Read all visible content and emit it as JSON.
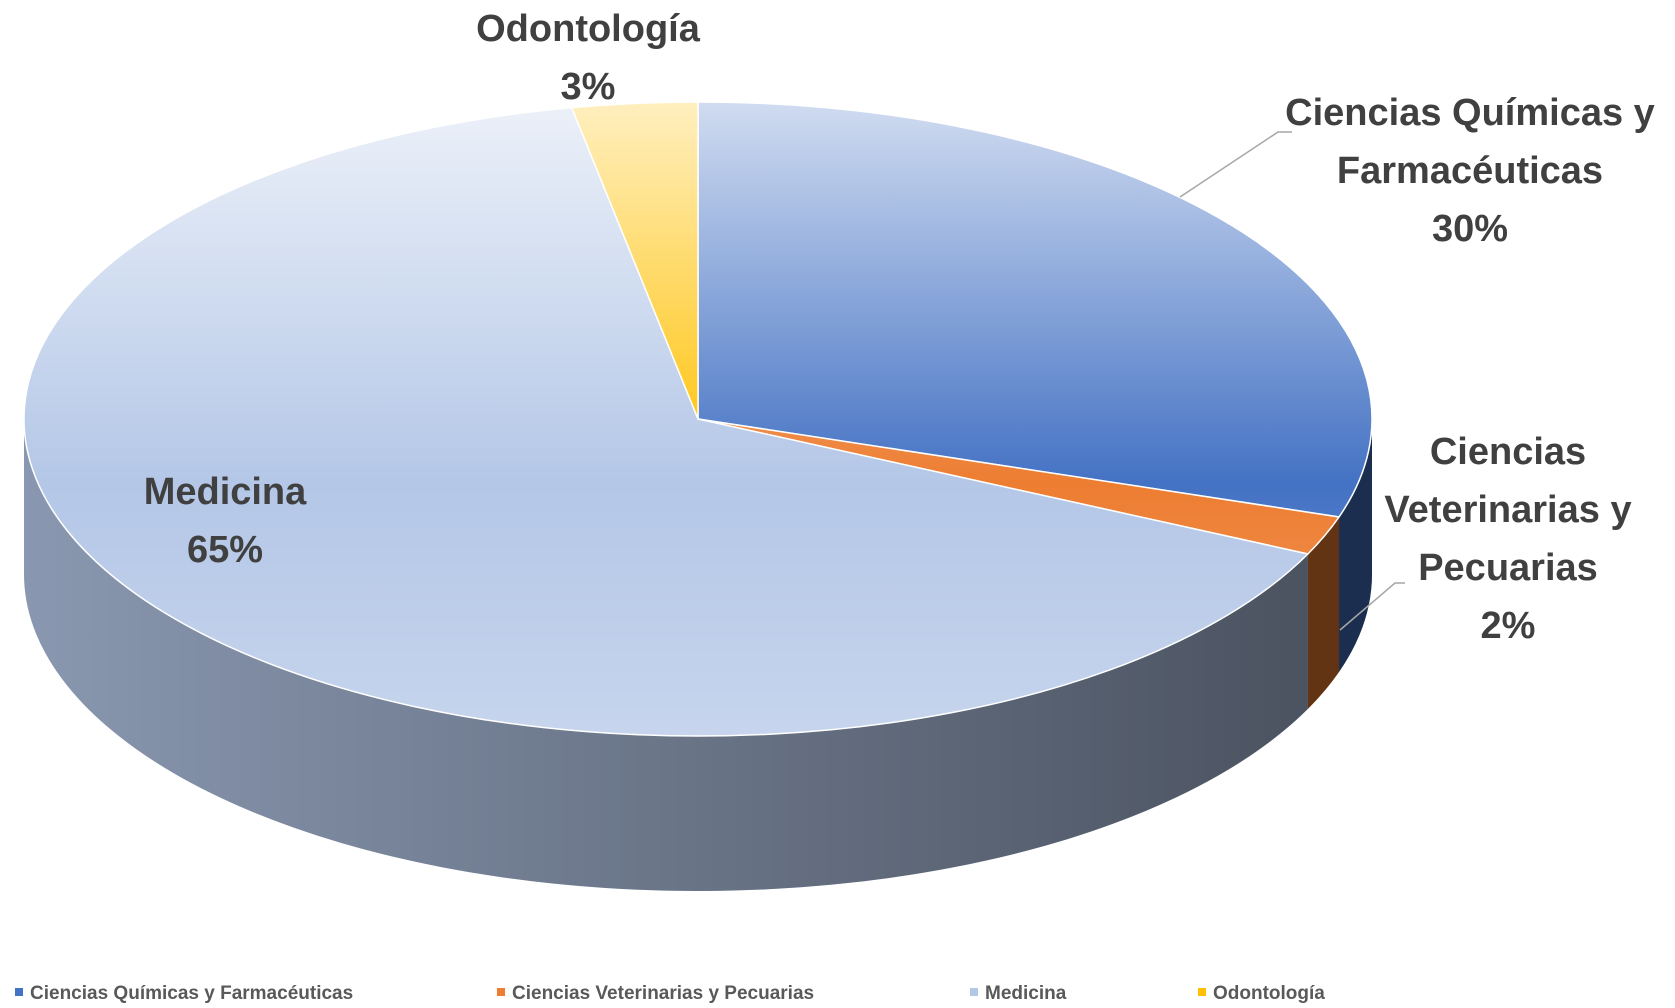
{
  "chart_data": {
    "type": "pie3d",
    "categories": [
      "Ciencias Químicas y Farmacéuticas",
      "Ciencias Veterinarias y Pecuarias",
      "Medicina",
      "Odontología"
    ],
    "values": [
      30,
      2,
      65,
      3
    ],
    "value_labels": [
      "30%",
      "2%",
      "65%",
      "3%"
    ],
    "colors": [
      "#4472c4",
      "#ed7d31",
      "#b4c7e7",
      "#ffc000"
    ],
    "legend": "bottom"
  }
}
